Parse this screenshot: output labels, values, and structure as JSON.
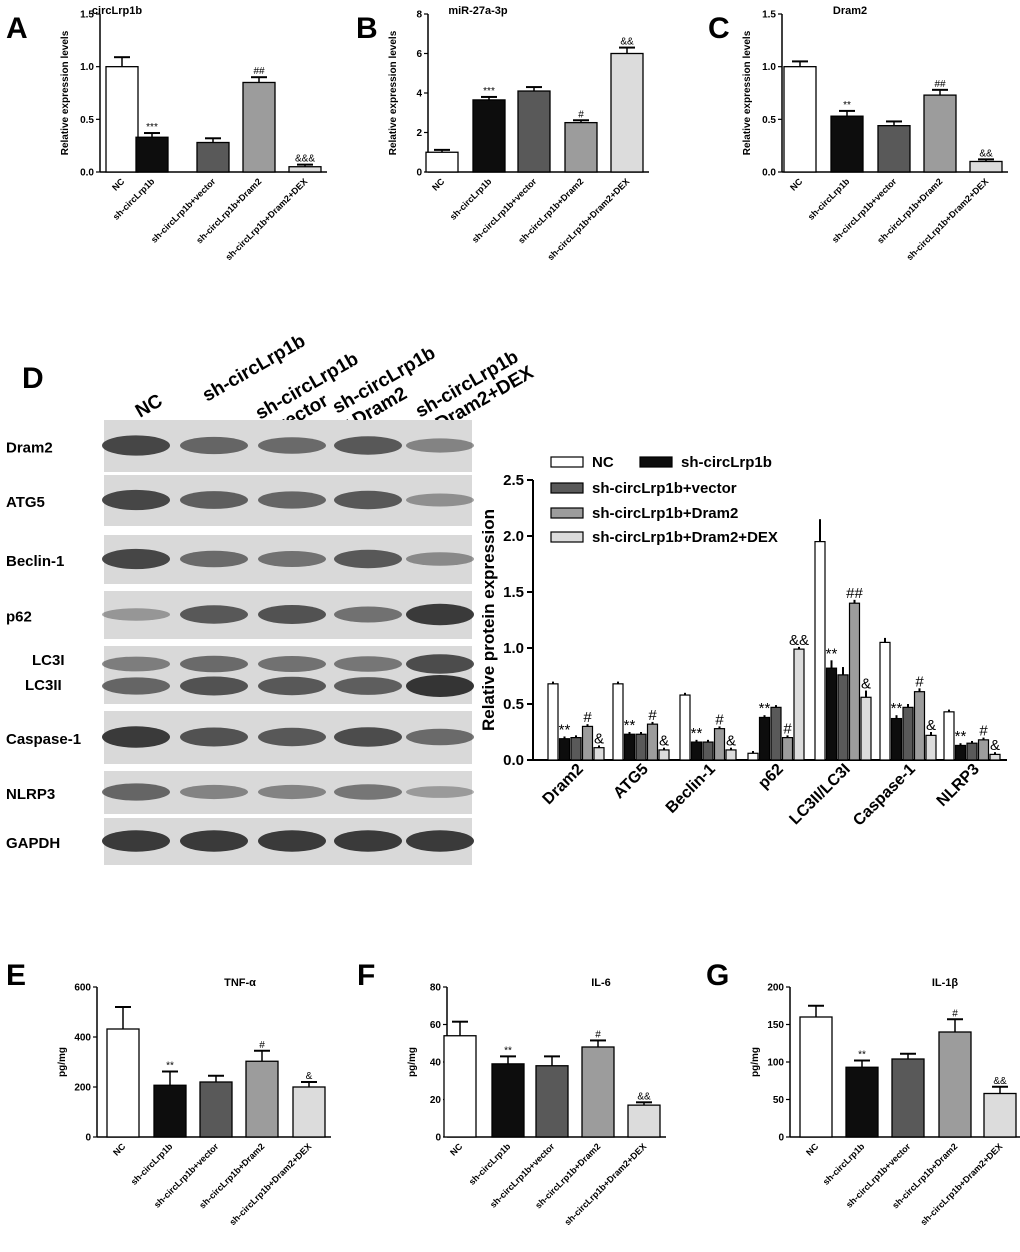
{
  "panels": {
    "letters": [
      "A",
      "B",
      "C",
      "D",
      "E",
      "F",
      "G"
    ]
  },
  "colors": {
    "nc": "#ffffff",
    "sh": "#0d0d0d",
    "vector": "#595959",
    "dram2": "#9c9c9c",
    "dex": "#dcdcdc",
    "band": "#2b2b2b",
    "blot_bg": "#d9d9d9"
  },
  "western_blot": {
    "columns": [
      "NC",
      "sh-circLrp1b",
      "sh-circLrp1b\n+vector",
      "sh-circLrp1b\n+Dram2",
      "sh-circLrp1b\n+Dram2+DEX"
    ],
    "rows": [
      {
        "label": "Dram2",
        "intensity": [
          0.85,
          0.6,
          0.55,
          0.7,
          0.35
        ]
      },
      {
        "label": "ATG5",
        "intensity": [
          0.85,
          0.65,
          0.6,
          0.7,
          0.25
        ]
      },
      {
        "label": "Beclin-1",
        "intensity": [
          0.85,
          0.55,
          0.5,
          0.7,
          0.3
        ]
      },
      {
        "label": "p62",
        "intensity": [
          0.2,
          0.7,
          0.75,
          0.5,
          0.95
        ]
      },
      {
        "label": "LC3I\nLC3II",
        "intensity": [
          0.4,
          0.55,
          0.5,
          0.45,
          0.8
        ]
      },
      {
        "label": "Caspase-1",
        "intensity": [
          0.95,
          0.75,
          0.7,
          0.8,
          0.55
        ]
      },
      {
        "label": "NLRP3",
        "intensity": [
          0.6,
          0.35,
          0.35,
          0.45,
          0.15
        ]
      },
      {
        "label": "GAPDH",
        "intensity": [
          0.95,
          0.95,
          0.95,
          0.95,
          0.95
        ]
      }
    ]
  },
  "chart_data": [
    {
      "id": "A",
      "type": "bar",
      "title": "circLrp1b",
      "ylabel": "Relative expression levels",
      "categories": [
        "NC",
        "sh-circLrp1b",
        "sh-circLrp1b+vector",
        "sh-circLrp1b+Dram2",
        "sh-circLrp1b+Dram2+DEX"
      ],
      "values": [
        1.0,
        0.33,
        0.28,
        0.85,
        0.05
      ],
      "errors": [
        0.09,
        0.04,
        0.04,
        0.05,
        0.02
      ],
      "sig": [
        "",
        "***",
        "",
        "##",
        "&&&"
      ],
      "ylim": [
        0,
        1.5
      ],
      "yticks": [
        0,
        0.5,
        1.0,
        1.5
      ],
      "ytick_labels": [
        "0.0",
        "0.5",
        "1.0",
        "1.5"
      ]
    },
    {
      "id": "B",
      "type": "bar",
      "title": "miR-27a-3p",
      "ylabel": "Relative expression levels",
      "categories": [
        "NC",
        "sh-circLrp1b",
        "sh-circLrp1b+vector",
        "sh-circLrp1b+Dram2",
        "sh-circLrp1b+Dram2+DEX"
      ],
      "values": [
        1.0,
        3.65,
        4.1,
        2.5,
        6.0
      ],
      "errors": [
        0.12,
        0.15,
        0.2,
        0.12,
        0.3
      ],
      "sig": [
        "",
        "***",
        "",
        "#",
        "&&"
      ],
      "ylim": [
        0,
        8
      ],
      "yticks": [
        0,
        2,
        4,
        6,
        8
      ],
      "ytick_labels": [
        "0",
        "2",
        "4",
        "6",
        "8"
      ]
    },
    {
      "id": "C",
      "type": "bar",
      "title": "Dram2",
      "ylabel": "Relative expression levels",
      "categories": [
        "NC",
        "sh-circLrp1b",
        "sh-circLrp1b+vector",
        "sh-circLrp1b+Dram2",
        "sh-circLrp1b+Dram2+DEX"
      ],
      "values": [
        1.0,
        0.53,
        0.44,
        0.73,
        0.1
      ],
      "errors": [
        0.05,
        0.05,
        0.04,
        0.05,
        0.02
      ],
      "sig": [
        "",
        "**",
        "",
        "##",
        "&&"
      ],
      "ylim": [
        0,
        1.5
      ],
      "yticks": [
        0,
        0.5,
        1.0,
        1.5
      ],
      "ytick_labels": [
        "0.0",
        "0.5",
        "1.0",
        "1.5"
      ]
    },
    {
      "id": "D",
      "type": "bar",
      "ylabel": "Relative protein expression",
      "categories": [
        "Dram2",
        "ATG5",
        "Beclin-1",
        "p62",
        "LC3II/LC3I",
        "Caspase-1",
        "NLRP3"
      ],
      "series": [
        {
          "name": "NC",
          "values": [
            0.68,
            0.68,
            0.58,
            0.06,
            1.95,
            1.05,
            0.43
          ],
          "errors": [
            0.02,
            0.02,
            0.02,
            0.02,
            0.2,
            0.04,
            0.02
          ]
        },
        {
          "name": "sh-circLrp1b",
          "values": [
            0.19,
            0.23,
            0.16,
            0.38,
            0.82,
            0.37,
            0.13
          ],
          "errors": [
            0.02,
            0.02,
            0.02,
            0.02,
            0.07,
            0.03,
            0.02
          ]
        },
        {
          "name": "sh-circLrp1b+vector",
          "values": [
            0.2,
            0.23,
            0.16,
            0.47,
            0.76,
            0.47,
            0.15
          ],
          "errors": [
            0.02,
            0.02,
            0.02,
            0.02,
            0.07,
            0.03,
            0.02
          ]
        },
        {
          "name": "sh-circLrp1b+Dram2",
          "values": [
            0.3,
            0.32,
            0.28,
            0.2,
            1.4,
            0.61,
            0.18
          ],
          "errors": [
            0.02,
            0.02,
            0.02,
            0.02,
            0.03,
            0.03,
            0.02
          ]
        },
        {
          "name": "sh-circLrp1b+Dram2+DEX",
          "values": [
            0.11,
            0.09,
            0.09,
            0.99,
            0.56,
            0.22,
            0.05
          ],
          "errors": [
            0.02,
            0.02,
            0.02,
            0.02,
            0.06,
            0.03,
            0.02
          ]
        }
      ],
      "sig": [
        [
          "",
          "**",
          "",
          "#",
          "&"
        ],
        [
          "",
          "**",
          "",
          "#",
          "&"
        ],
        [
          "",
          "**",
          "",
          "#",
          "&"
        ],
        [
          "",
          "**",
          "",
          "#",
          "&&"
        ],
        [
          "",
          "**",
          "",
          "##",
          "&"
        ],
        [
          "",
          "**",
          "",
          "#",
          "&"
        ],
        [
          "",
          "**",
          "",
          "#",
          "&"
        ]
      ],
      "ylim": [
        0,
        2.5
      ],
      "yticks": [
        0,
        0.5,
        1.0,
        1.5,
        2.0,
        2.5
      ],
      "ytick_labels": [
        "0.0",
        "0.5",
        "1.0",
        "1.5",
        "2.0",
        "2.5"
      ],
      "legend": "top-right"
    },
    {
      "id": "E",
      "type": "bar",
      "title": "TNF-α",
      "ylabel": "pg/mg",
      "categories": [
        "NC",
        "sh-circLrp1b",
        "sh-circLrp1b+vector",
        "sh-circLrp1b+Dram2",
        "sh-circLrp1b+Dram2+DEX"
      ],
      "values": [
        432,
        207,
        220,
        303,
        200
      ],
      "errors": [
        88,
        55,
        25,
        42,
        20
      ],
      "sig": [
        "",
        "**",
        "",
        "#",
        "&"
      ],
      "ylim": [
        0,
        600
      ],
      "yticks": [
        0,
        200,
        400,
        600
      ],
      "ytick_labels": [
        "0",
        "200",
        "400",
        "600"
      ]
    },
    {
      "id": "F",
      "type": "bar",
      "title": "IL-6",
      "ylabel": "pg/mg",
      "categories": [
        "NC",
        "sh-circLrp1b",
        "sh-circLrp1b+vector",
        "sh-circLrp1b+Dram2",
        "sh-circLrp1b+Dram2+DEX"
      ],
      "values": [
        54,
        39,
        38,
        48,
        17
      ],
      "errors": [
        7.5,
        4,
        5,
        3.5,
        1.5
      ],
      "sig": [
        "",
        "**",
        "",
        "#",
        "&&"
      ],
      "ylim": [
        0,
        80
      ],
      "yticks": [
        0,
        20,
        40,
        60,
        80
      ],
      "ytick_labels": [
        "0",
        "20",
        "40",
        "60",
        "80"
      ]
    },
    {
      "id": "G",
      "type": "bar",
      "title": "IL-1β",
      "ylabel": "pg/mg",
      "categories": [
        "NC",
        "sh-circLrp1b",
        "sh-circLrp1b+vector",
        "sh-circLrp1b+Dram2",
        "sh-circLrp1b+Dram2+DEX"
      ],
      "values": [
        160,
        93,
        104,
        140,
        58
      ],
      "errors": [
        15,
        9,
        7,
        17,
        9
      ],
      "sig": [
        "",
        "**",
        "",
        "#",
        "&&"
      ],
      "ylim": [
        0,
        200
      ],
      "yticks": [
        0,
        50,
        100,
        150,
        200
      ],
      "ytick_labels": [
        "0",
        "50",
        "100",
        "150",
        "200"
      ]
    }
  ]
}
